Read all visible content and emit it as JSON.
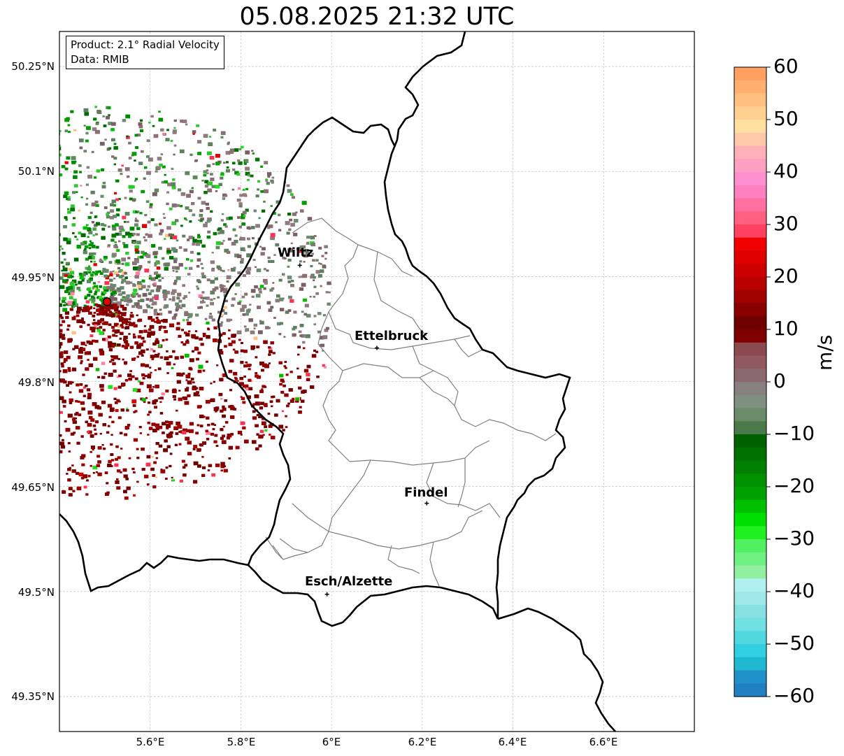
{
  "title": "05.08.2025 21:32 UTC",
  "info": {
    "product": "Product: 2.1° Radial Velocity",
    "data": "Data: RMIB"
  },
  "axes": {
    "lat_labels": [
      "50.25°N",
      "50.1°N",
      "49.95°N",
      "49.8°N",
      "49.65°N",
      "49.5°N",
      "49.35°N"
    ],
    "lon_labels": [
      "5.6°E",
      "5.8°E",
      "6°E",
      "6.2°E",
      "6.4°E",
      "6.6°E"
    ],
    "lon_range": [
      5.4,
      6.8
    ],
    "lat_range": [
      49.3,
      50.3
    ]
  },
  "cities": [
    {
      "name": "Wiltz",
      "lon": 5.93,
      "lat": 49.966
    },
    {
      "name": "Ettelbruck",
      "lon": 6.1,
      "lat": 49.848
    },
    {
      "name": "Findel",
      "lon": 6.21,
      "lat": 49.626
    },
    {
      "name": "Esch/Alzette",
      "lon": 5.99,
      "lat": 49.496
    }
  ],
  "radar_site": {
    "lon": 5.505,
    "lat": 49.914
  },
  "colorbar": {
    "unit": "m/s",
    "ticks": [
      "60",
      "50",
      "40",
      "30",
      "20",
      "10",
      "0",
      "−10",
      "−20",
      "−30",
      "−40",
      "−50",
      "−60"
    ],
    "colors": [
      "#ffa060",
      "#ffb070",
      "#ffc080",
      "#ffd090",
      "#ffe0a0",
      "#ffc8a8",
      "#ffb0b8",
      "#ffa0c0",
      "#ff90d0",
      "#ff80c0",
      "#ff70a0",
      "#ff6080",
      "#ff4060",
      "#f00000",
      "#e00000",
      "#cc0000",
      "#b80000",
      "#a00000",
      "#880000",
      "#700000",
      "#800000",
      "#8a4a50",
      "#905860",
      "#8a6870",
      "#888080",
      "#809080",
      "#6a8a6a",
      "#4a7a4a",
      "#006000",
      "#007000",
      "#008000",
      "#009000",
      "#00a000",
      "#00c000",
      "#00e000",
      "#20f020",
      "#50f060",
      "#70f080",
      "#90f0a0",
      "#b0f0f0",
      "#a0e8e8",
      "#88e0e0",
      "#70e0e0",
      "#50d8e0",
      "#30d0e0",
      "#20b8d0",
      "#2090c8",
      "#2080c0"
    ]
  }
}
